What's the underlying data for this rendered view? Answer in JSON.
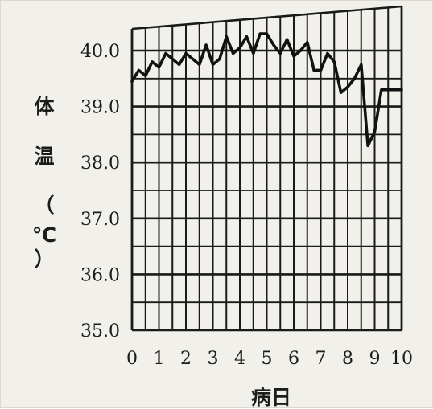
{
  "chart_data": {
    "type": "line",
    "title": "",
    "xlabel": "病日",
    "ylabel": [
      "体",
      "温",
      "（",
      "℃",
      "）"
    ],
    "x_ticks": [
      "0",
      "1",
      "2",
      "3",
      "4",
      "5",
      "6",
      "7",
      "8",
      "9",
      "10"
    ],
    "y_ticks": [
      "40.0",
      "39.0",
      "38.0",
      "37.0",
      "36.0",
      "35.0"
    ],
    "xlim": [
      0,
      10
    ],
    "ylim": [
      35.0,
      40.5
    ],
    "grid": true,
    "series": [
      {
        "x": [
          0,
          0.25,
          0.5,
          0.75,
          1.0,
          1.25,
          1.5,
          1.75,
          2.0,
          2.25,
          2.5,
          2.75,
          3.0,
          3.25,
          3.5,
          3.75,
          4.0,
          4.25,
          4.5,
          4.75,
          5.0,
          5.25,
          5.5,
          5.75,
          6.0,
          6.25,
          6.5,
          6.75,
          7.0,
          7.25,
          7.5,
          7.75,
          8.0,
          8.25,
          8.5,
          8.75,
          9.0,
          9.25,
          9.5,
          9.75,
          10.0
        ],
        "y": [
          39.45,
          39.65,
          39.55,
          39.8,
          39.7,
          39.95,
          39.85,
          39.75,
          39.95,
          39.85,
          39.75,
          40.1,
          39.75,
          39.85,
          40.25,
          39.95,
          40.05,
          40.25,
          39.95,
          40.3,
          40.3,
          40.1,
          39.95,
          40.2,
          39.9,
          40.0,
          40.15,
          39.65,
          39.65,
          39.95,
          39.8,
          39.25,
          39.35,
          39.5,
          39.75,
          38.3,
          38.55,
          39.3,
          39.3,
          39.3,
          39.3
        ]
      }
    ],
    "colors": {
      "line": "#111111",
      "grid": "#1a1a1a",
      "background": "#f1f0ea"
    }
  }
}
